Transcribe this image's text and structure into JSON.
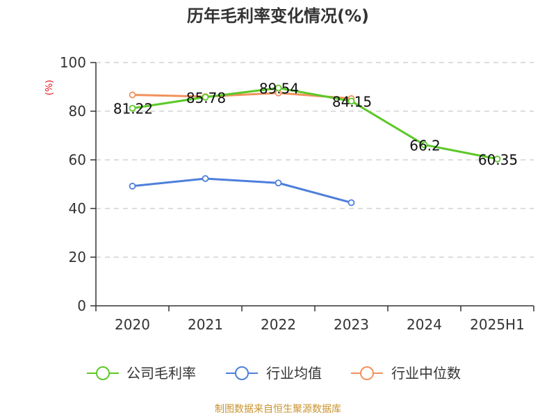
{
  "chart_data": {
    "type": "line",
    "title": "历年毛利率变化情况(%)",
    "y_unit": "(%)",
    "categories": [
      "2020",
      "2021",
      "2022",
      "2023",
      "2024",
      "2025H1"
    ],
    "ylim": [
      0,
      100
    ],
    "yticks": [
      0,
      20,
      40,
      60,
      80,
      100
    ],
    "grid": true,
    "legend_position": "bottom",
    "series": [
      {
        "name": "公司毛利率",
        "color": "#5cc829",
        "values": [
          81.22,
          85.78,
          89.54,
          84.15,
          66.2,
          60.35
        ],
        "labels": [
          "81.22",
          "85.78",
          "89.54",
          "84.15",
          "66.2",
          "60.35"
        ]
      },
      {
        "name": "行业均值",
        "color": "#4d7fdc",
        "values": [
          49.2,
          52.3,
          50.5,
          42.4,
          null,
          null
        ]
      },
      {
        "name": "行业中位数",
        "color": "#f0925d",
        "values": [
          86.7,
          86.0,
          87.5,
          85.2,
          null,
          null
        ]
      }
    ],
    "source": "制图数据来自恒生聚源数据库"
  }
}
